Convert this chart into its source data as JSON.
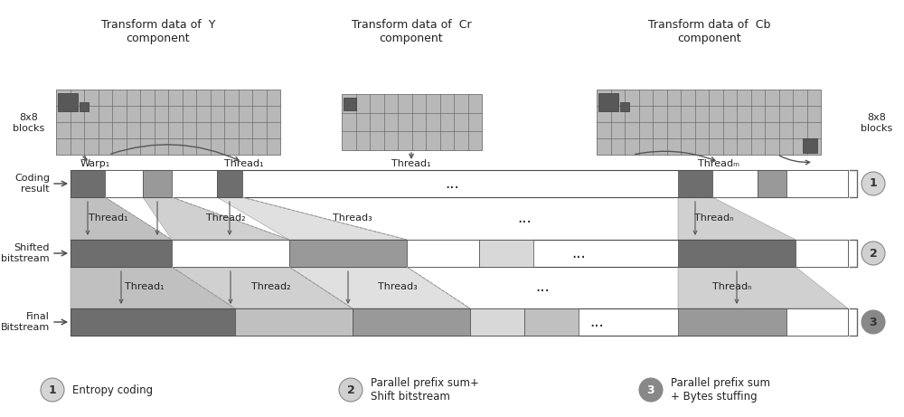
{
  "bg_color": "#ffffff",
  "labels": {
    "y_comp": "Transform data of  Y\ncomponent",
    "cr_comp": "Transform data of  Cr\ncomponent",
    "cb_comp": "Transform data of  Cb\ncomponent",
    "blocks_left": "8x8\nblocks",
    "blocks_right": "8x8\nblocks",
    "coding_result": "Coding\nresult",
    "shifted_bitstream": "Shifted\nbitstream",
    "final_bitstream": "Final\nBitstream",
    "legend1": "Entropy coding",
    "legend2": "Parallel prefix sum+\nShift bitstream",
    "legend3": "Parallel prefix sum\n+ Bytes stuffing"
  },
  "colors": {
    "dark_gray": "#6e6e6e",
    "mid_gray": "#999999",
    "light_gray": "#c0c0c0",
    "lighter_gray": "#d8d8d8",
    "white": "#ffffff",
    "grid_fill": "#b8b8b8",
    "grid_edge": "#5a5a5a",
    "trap1": "#c0c0c0",
    "trap2": "#d0d0d0",
    "trap3": "#e0e0e0",
    "circle1": "#d5d5d5",
    "circle2": "#d0d0d0",
    "circle3": "#888888",
    "bar_edge": "#4a4a4a"
  }
}
